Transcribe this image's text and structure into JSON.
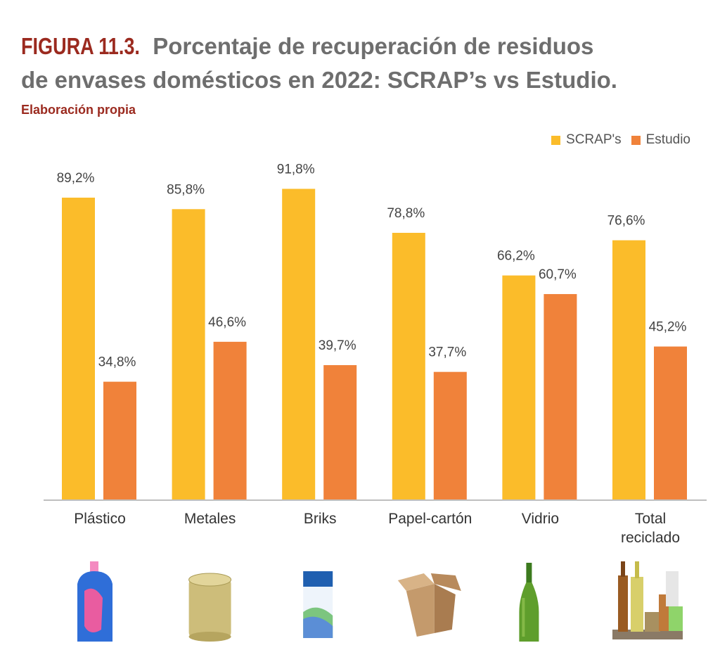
{
  "figure_label": "FIGURA 11.3.",
  "title_line1": "Porcentaje de recuperación de residuos",
  "title_line2": "de envases domésticos en 2022: SCRAP’s vs Estudio.",
  "subtitle": "Elaboración propia",
  "chart_data": {
    "type": "bar",
    "title": "Porcentaje de recuperación de residuos de envases domésticos en 2022: SCRAP’s vs Estudio.",
    "categories": [
      "Plástico",
      "Metales",
      "Briks",
      "Papel-cartón",
      "Vidrio",
      "Total reciclado"
    ],
    "category_lines": [
      [
        "Plástico"
      ],
      [
        "Metales"
      ],
      [
        "Briks"
      ],
      [
        "Papel-cartón"
      ],
      [
        "Vidrio"
      ],
      [
        "Total",
        "reciclado"
      ]
    ],
    "series": [
      {
        "name": "SCRAP's",
        "color": "#fbbc2a",
        "values": [
          89.2,
          85.8,
          91.8,
          78.8,
          66.2,
          76.6
        ],
        "labels": [
          "89,2%",
          "85,8%",
          "91,8%",
          "78,8%",
          "66,2%",
          "76,6%"
        ]
      },
      {
        "name": "Estudio",
        "color": "#f0823a",
        "values": [
          34.8,
          46.6,
          39.7,
          37.7,
          60.7,
          45.2
        ],
        "labels": [
          "34,8%",
          "46,6%",
          "39,7%",
          "37,7%",
          "60,7%",
          "45,2%"
        ]
      }
    ],
    "ylim": [
      0,
      100
    ],
    "grid": false,
    "legend": "top-right",
    "icons": [
      "detergent-bottle-icon",
      "tin-can-icon",
      "milk-carton-icon",
      "cardboard-box-icon",
      "glass-bottle-icon",
      "mixed-packaging-icon"
    ]
  }
}
